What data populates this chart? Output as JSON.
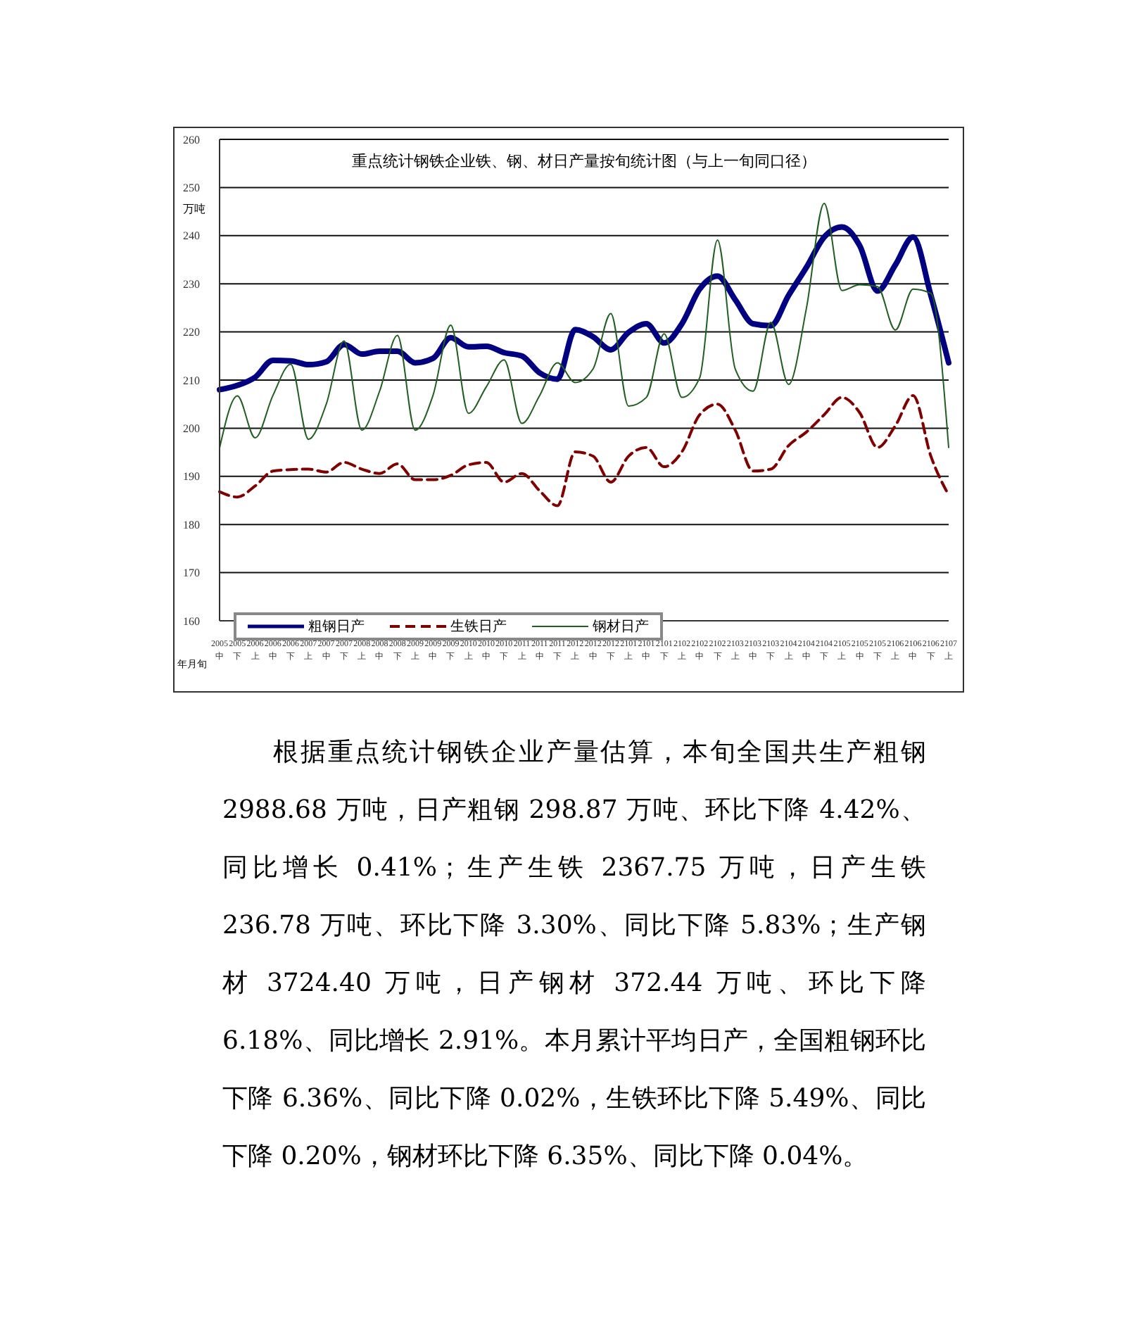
{
  "chart_data": {
    "type": "line",
    "title": "重点统计钢铁企业铁、钢、材日产量按旬统计图（与上一旬同口径）",
    "ylabel": "万吨",
    "xlabel": "年月旬",
    "categories": [
      "2005中",
      "2005下",
      "2006上",
      "2006中",
      "2006下",
      "2007上",
      "2007中",
      "2007下",
      "2008上",
      "2008中",
      "2008下",
      "2009上",
      "2009中",
      "2009下",
      "2010上",
      "2010中",
      "2010下",
      "2011上",
      "2011中",
      "2011下",
      "2012上",
      "2012中",
      "2012下",
      "2101上",
      "2101中",
      "2101下",
      "2102上",
      "2102中",
      "2102下",
      "2103上",
      "2103中",
      "2103下",
      "2104上",
      "2104中",
      "2104下",
      "2105上",
      "2105中",
      "2105下",
      "2106上",
      "2106中",
      "2106下",
      "2107上"
    ],
    "series": [
      {
        "name": "粗钢日产",
        "color": "#000080",
        "line_style": "solid",
        "values": [
          208.0,
          208.9,
          210.6,
          214.1,
          214,
          213.2,
          213.8,
          217.4,
          215.4,
          216,
          216,
          213.6,
          214.5,
          218.8,
          216.9,
          217,
          215.7,
          215,
          211.5,
          210.2,
          220.5,
          219,
          216.3,
          219.9,
          221.7,
          217.7,
          221.7,
          228.9,
          231.6,
          226.7,
          221.7,
          221.3,
          227.6,
          233.4,
          239.7,
          241.8,
          237.9,
          228.5,
          233.9,
          239.7,
          227.6,
          213.6
        ]
      },
      {
        "name": "生铁日产",
        "color": "#800000",
        "line_style": "dashed",
        "values": [
          186.8,
          185.7,
          188,
          191.1,
          191.4,
          191.5,
          190.9,
          192.9,
          191.5,
          190.6,
          192.6,
          189.3,
          189.3,
          190.2,
          192.4,
          192.9,
          188.8,
          190.6,
          187,
          183.9,
          195.1,
          194.2,
          188.8,
          194.2,
          196,
          192,
          195.1,
          202.8,
          205,
          199.6,
          191.1,
          191.5,
          196.4,
          199.2,
          202.8,
          206.4,
          203.2,
          196,
          200.5,
          206.8,
          194.2,
          186.1
        ]
      },
      {
        "name": "钢材日产",
        "color": "#1f5f1f",
        "line_style": "solid",
        "values": [
          195.9,
          206.7,
          198,
          206.8,
          213.3,
          197.7,
          205,
          218.1,
          199.6,
          207.7,
          219.3,
          199.6,
          206.8,
          221.4,
          203.1,
          208.6,
          214.2,
          201,
          206.8,
          213.6,
          209.5,
          212.3,
          223.8,
          204.6,
          206.4,
          219.6,
          206.4,
          210.5,
          239.1,
          212.3,
          207.7,
          222,
          209.1,
          224.9,
          246.7,
          228.6,
          229.8,
          229.4,
          220.4,
          228.9,
          228,
          196
        ]
      }
    ],
    "ylim": [
      160,
      260
    ],
    "yticks": [
      160,
      170,
      180,
      190,
      200,
      210,
      220,
      230,
      240,
      250,
      260
    ],
    "grid": "y",
    "legend": "bottom left",
    "annotations": [
      "根据重点统计钢铁企业产量估算，本旬全国共生产粗钢 2988.68 万吨，日产粗钢 298.87 万吨、环比下降 4.42%、同比增长 0.41%；生产生铁 2367.75 万吨，日产生铁 236.78 万吨、环比下降 3.30%、同比下降 5.83%；生产钢材 3724.40 万吨，日产钢材 372.44 万吨、环比下降 6.18%、同比增长 2.91%。本月累计平均日产，全国粗钢环比下降 6.36%、同比下降 0.02%，生铁环比下降 5.49%、同比下降 0.20%，钢材环比下降 6.35%、同比下降 0.04%。"
    ]
  }
}
